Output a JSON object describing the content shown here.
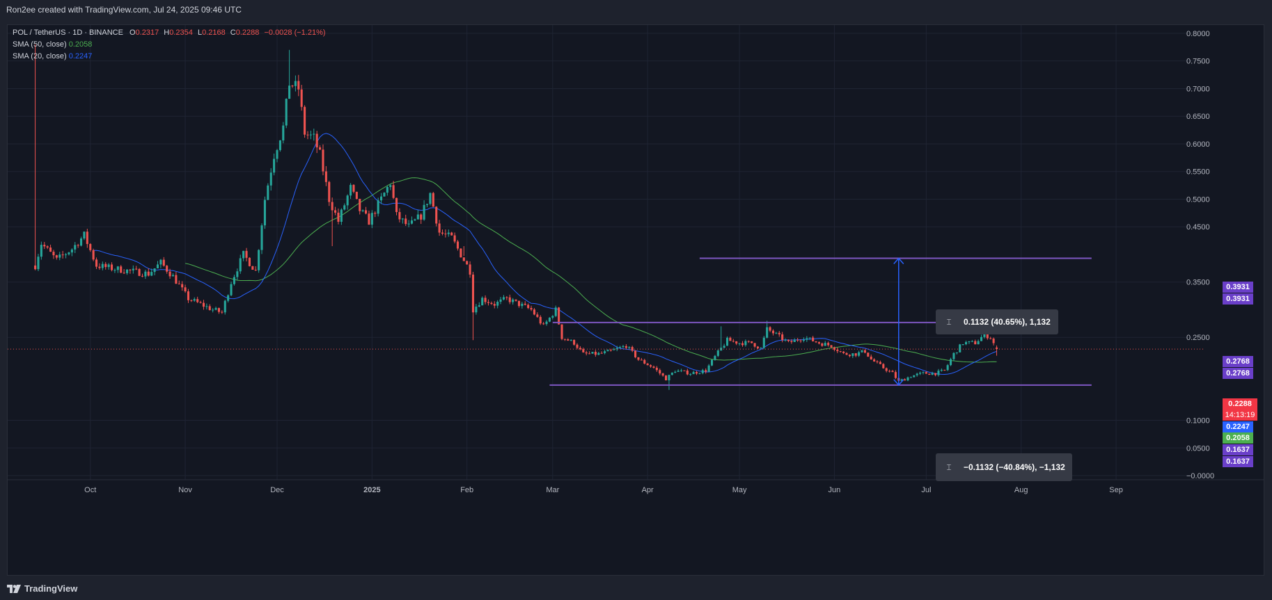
{
  "header": {
    "attribution": "Ron2ee created with TradingView.com, Jul 24, 2025 09:46 UTC"
  },
  "legend": {
    "symbol": "POL / TetherUS · 1D · BINANCE",
    "o_label": "O",
    "o_value": "0.2317",
    "h_label": "H",
    "h_value": "0.2354",
    "l_label": "L",
    "l_value": "0.2168",
    "c_label": "C",
    "c_value": "0.2288",
    "change": "−0.0028 (−1.21%)",
    "sma50_label": "SMA (50, close)",
    "sma50_value": "0.2058",
    "sma20_label": "SMA (20, close)",
    "sma20_value": "0.2247"
  },
  "badges": {
    "upper_target_a": "0.3931",
    "upper_target_b": "0.3931",
    "resistance_a": "0.2768",
    "resistance_b": "0.2768",
    "last_price": "0.2288",
    "countdown": "14:13:19",
    "sma20": "0.2247",
    "sma50": "0.2058",
    "support_a": "0.1637",
    "support_b": "0.1637"
  },
  "measures": {
    "up": "0.1132 (40.65%), 1,132",
    "down": "−0.1132 (−40.84%), −1,132"
  },
  "footer": {
    "logo_text": "TradingView"
  },
  "colors": {
    "background": "#131722",
    "grid": "#1f2433",
    "up": "#26a69a",
    "down": "#ef5350",
    "sma50": "#4caf50",
    "sma20": "#2962ff",
    "levels": "#7e57c2",
    "measure": "#2962ff",
    "price_line": "#ef5350",
    "badge_level": "#6a3fc9"
  },
  "chart_data": {
    "type": "candlestick",
    "title": "POL / TetherUS · 1D · BINANCE",
    "xlabel": "",
    "ylabel": "",
    "ylim": [
      -0.005,
      0.815
    ],
    "y_ticks": [
      "0.8000",
      "0.7500",
      "0.7000",
      "0.6500",
      "0.6000",
      "0.5500",
      "0.5000",
      "0.4500",
      "0.3500",
      "0.2500",
      "0.1000",
      "0.0500",
      "−0.0000"
    ],
    "x_ticks": [
      {
        "label": "Oct",
        "date": "2024-10-01"
      },
      {
        "label": "Nov",
        "date": "2024-11-01"
      },
      {
        "label": "Dec",
        "date": "2024-12-01"
      },
      {
        "label": "2025",
        "date": "2025-01-01"
      },
      {
        "label": "Feb",
        "date": "2025-02-01"
      },
      {
        "label": "Mar",
        "date": "2025-03-01"
      },
      {
        "label": "Apr",
        "date": "2025-04-01"
      },
      {
        "label": "May",
        "date": "2025-05-01"
      },
      {
        "label": "Jun",
        "date": "2025-06-01"
      },
      {
        "label": "Jul",
        "date": "2025-07-01"
      },
      {
        "label": "Aug",
        "date": "2025-08-01"
      },
      {
        "label": "Sep",
        "date": "2025-09-01"
      }
    ],
    "xrange": [
      "2024-09-04",
      "2025-09-21"
    ],
    "price_anchors": [
      [
        "2024-09-13",
        0.38
      ],
      [
        "2024-09-15",
        0.42
      ],
      [
        "2024-09-20",
        0.39
      ],
      [
        "2024-09-25",
        0.41
      ],
      [
        "2024-09-29",
        0.435
      ],
      [
        "2024-10-03",
        0.38
      ],
      [
        "2024-10-08",
        0.375
      ],
      [
        "2024-10-14",
        0.37
      ],
      [
        "2024-10-20",
        0.365
      ],
      [
        "2024-10-24",
        0.385
      ],
      [
        "2024-10-28",
        0.36
      ],
      [
        "2024-11-02",
        0.32
      ],
      [
        "2024-11-06",
        0.31
      ],
      [
        "2024-11-10",
        0.3
      ],
      [
        "2024-11-13",
        0.295
      ],
      [
        "2024-11-16",
        0.35
      ],
      [
        "2024-11-20",
        0.4
      ],
      [
        "2024-11-24",
        0.37
      ],
      [
        "2024-11-27",
        0.5
      ],
      [
        "2024-11-30",
        0.58
      ],
      [
        "2024-12-03",
        0.63
      ],
      [
        "2024-12-05",
        0.71
      ],
      [
        "2024-12-08",
        0.7
      ],
      [
        "2024-12-10",
        0.62
      ],
      [
        "2024-12-13",
        0.61
      ],
      [
        "2024-12-15",
        0.58
      ],
      [
        "2024-12-18",
        0.5
      ],
      [
        "2024-12-21",
        0.46
      ],
      [
        "2024-12-25",
        0.52
      ],
      [
        "2024-12-28",
        0.48
      ],
      [
        "2024-12-31",
        0.46
      ],
      [
        "2025-01-04",
        0.5
      ],
      [
        "2025-01-07",
        0.53
      ],
      [
        "2025-01-09",
        0.47
      ],
      [
        "2025-01-13",
        0.45
      ],
      [
        "2025-01-17",
        0.47
      ],
      [
        "2025-01-20",
        0.51
      ],
      [
        "2025-01-23",
        0.44
      ],
      [
        "2025-01-27",
        0.43
      ],
      [
        "2025-01-30",
        0.4
      ],
      [
        "2025-02-02",
        0.37
      ],
      [
        "2025-02-03",
        0.3
      ],
      [
        "2025-02-06",
        0.32
      ],
      [
        "2025-02-10",
        0.31
      ],
      [
        "2025-02-14",
        0.32
      ],
      [
        "2025-02-18",
        0.31
      ],
      [
        "2025-02-22",
        0.3
      ],
      [
        "2025-02-26",
        0.27
      ],
      [
        "2025-03-02",
        0.3
      ],
      [
        "2025-03-04",
        0.25
      ],
      [
        "2025-03-08",
        0.24
      ],
      [
        "2025-03-11",
        0.22
      ],
      [
        "2025-03-16",
        0.22
      ],
      [
        "2025-03-20",
        0.225
      ],
      [
        "2025-03-25",
        0.235
      ],
      [
        "2025-03-29",
        0.21
      ],
      [
        "2025-04-03",
        0.195
      ],
      [
        "2025-04-07",
        0.175
      ],
      [
        "2025-04-10",
        0.19
      ],
      [
        "2025-04-15",
        0.185
      ],
      [
        "2025-04-20",
        0.19
      ],
      [
        "2025-04-23",
        0.215
      ],
      [
        "2025-04-27",
        0.245
      ],
      [
        "2025-05-01",
        0.24
      ],
      [
        "2025-05-05",
        0.24
      ],
      [
        "2025-05-08",
        0.23
      ],
      [
        "2025-05-10",
        0.265
      ],
      [
        "2025-05-13",
        0.255
      ],
      [
        "2025-05-17",
        0.24
      ],
      [
        "2025-05-22",
        0.25
      ],
      [
        "2025-05-27",
        0.24
      ],
      [
        "2025-05-31",
        0.235
      ],
      [
        "2025-06-04",
        0.22
      ],
      [
        "2025-06-08",
        0.22
      ],
      [
        "2025-06-11",
        0.225
      ],
      [
        "2025-06-13",
        0.21
      ],
      [
        "2025-06-17",
        0.195
      ],
      [
        "2025-06-20",
        0.185
      ],
      [
        "2025-06-22",
        0.17
      ],
      [
        "2025-06-26",
        0.18
      ],
      [
        "2025-06-30",
        0.185
      ],
      [
        "2025-07-04",
        0.185
      ],
      [
        "2025-07-07",
        0.19
      ],
      [
        "2025-07-10",
        0.22
      ],
      [
        "2025-07-13",
        0.24
      ],
      [
        "2025-07-17",
        0.24
      ],
      [
        "2025-07-20",
        0.255
      ],
      [
        "2025-07-22",
        0.25
      ],
      [
        "2025-07-24",
        0.2288
      ]
    ],
    "wick_spikes": [
      {
        "date": "2024-09-13",
        "high": 0.78
      },
      {
        "date": "2024-12-05",
        "high": 0.77
      },
      {
        "date": "2024-12-10",
        "high": 0.67
      },
      {
        "date": "2024-12-19",
        "low": 0.415
      },
      {
        "date": "2025-01-31",
        "low": 0.415
      },
      {
        "date": "2025-02-03",
        "low": 0.245
      },
      {
        "date": "2025-03-03",
        "high": 0.305
      },
      {
        "date": "2025-04-08",
        "low": 0.155
      },
      {
        "date": "2025-04-25",
        "high": 0.27
      },
      {
        "date": "2025-05-10",
        "high": 0.28
      }
    ],
    "last_candle": {
      "date": "2025-07-24",
      "open": 0.2317,
      "high": 0.2354,
      "low": 0.2168,
      "close": 0.2288
    },
    "sma20_last": 0.2247,
    "sma50_last": 0.2058,
    "horizontal_levels": [
      {
        "value": 0.3931,
        "from": "2025-04-18",
        "to": "2025-08-24"
      },
      {
        "value": 0.2768,
        "from": "2025-03-01",
        "to": "2025-08-10"
      },
      {
        "value": 0.1637,
        "from": "2025-02-28",
        "to": "2025-08-24"
      }
    ],
    "measure_arrow": {
      "date": "2025-06-22",
      "from": 0.1637,
      "to": 0.3931
    },
    "current_price": 0.2288,
    "event_marker_date": "2025-07-24"
  }
}
